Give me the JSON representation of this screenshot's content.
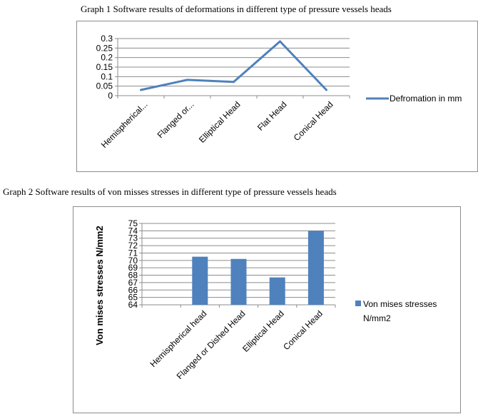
{
  "captions": {
    "graph1": "Graph 1 Software results of deformations in different type of pressure vessels heads",
    "graph2": "Graph 2 Software results of von misses stresses in different type of pressure vessels heads"
  },
  "colors": {
    "series": "#4f81bd",
    "grid": "#8c8c8c",
    "frame": "#8c8c8c"
  },
  "chart_data": [
    {
      "type": "line",
      "title": "",
      "xlabel": "",
      "ylabel": "",
      "categories": [
        "Hemispherical...",
        "Flanged or...",
        "Elliptical Head",
        "Flat Head",
        "Conical Head"
      ],
      "series": [
        {
          "name": "Defromation in mm",
          "values": [
            0.03,
            0.083,
            0.072,
            0.285,
            0.03
          ]
        }
      ],
      "ylim": [
        0,
        0.3
      ],
      "yticks": [
        "0",
        "0.05",
        "0.1",
        "0.15",
        "0.2",
        "0.25",
        "0.3"
      ],
      "grid": true,
      "legend": "right"
    },
    {
      "type": "bar",
      "title": "",
      "xlabel": "",
      "ylabel": "Von  mises stresses N/mm2",
      "categories": [
        "",
        "Hemispherical head",
        "Flanged or Dished Head",
        "Elliptical Head",
        "Conical Head"
      ],
      "series": [
        {
          "name": "Von mises stresses N/mm2",
          "values": [
            null,
            70.5,
            70.2,
            67.7,
            74
          ]
        }
      ],
      "ylim": [
        64,
        75
      ],
      "yticks": [
        "64",
        "65",
        "66",
        "67",
        "68",
        "69",
        "70",
        "71",
        "72",
        "73",
        "74",
        "75"
      ],
      "grid": true,
      "legend": "right"
    }
  ]
}
